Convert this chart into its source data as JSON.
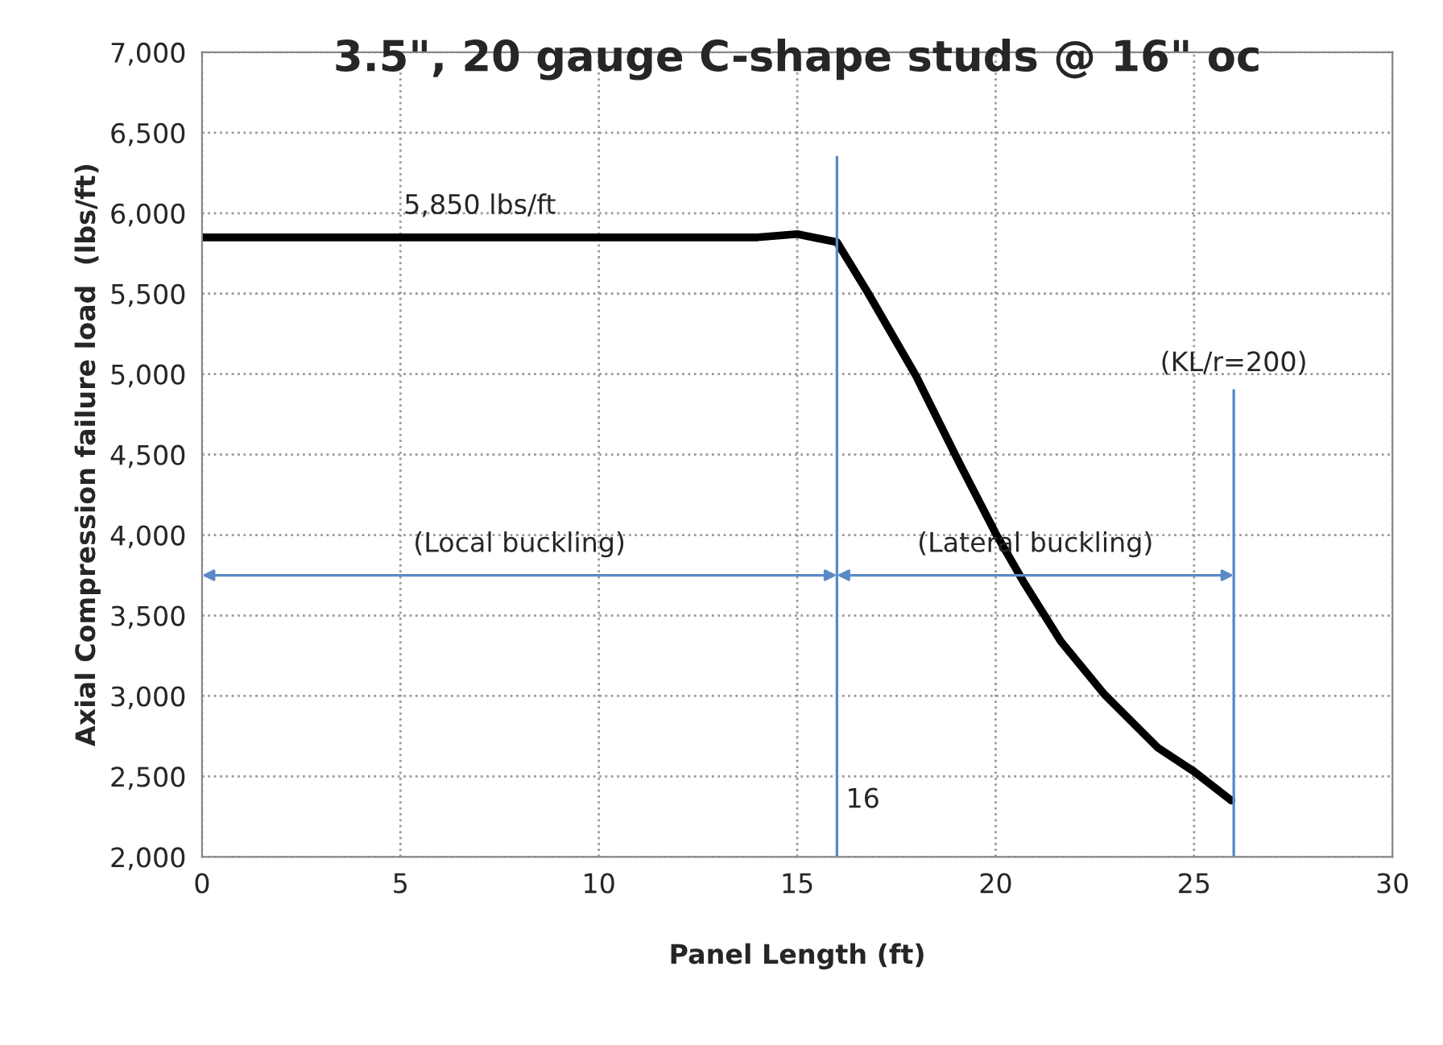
{
  "chart_data": {
    "type": "line",
    "title": "3.5\", 20 gauge C-shape studs @ 16\" oc",
    "xlabel": "Panel Length (ft)",
    "ylabel": "Axial Compression failure load  (lbs/ft)",
    "series": [
      {
        "color": "#000000",
        "x": [
          0,
          5,
          10,
          14,
          15,
          16,
          16.77,
          17.99,
          19.08,
          20,
          20.7,
          21.64,
          22.74,
          24.08,
          25,
          25.94
        ],
        "values": [
          5850,
          5850,
          5850,
          5850,
          5870,
          5820,
          5510,
          4990,
          4450,
          4010,
          3710,
          3340,
          3010,
          2680,
          2530,
          2350
        ]
      }
    ],
    "xlim": [
      0,
      30
    ],
    "xticks": [
      0,
      5,
      10,
      15,
      20,
      25,
      30
    ],
    "ylim": [
      2000,
      7000
    ],
    "yticks": [
      {
        "value": 2000,
        "label": "2,000"
      },
      {
        "value": 2500,
        "label": "2,500"
      },
      {
        "value": 3000,
        "label": "3,000"
      },
      {
        "value": 3500,
        "label": "3,500"
      },
      {
        "value": 4000,
        "label": "4,000"
      },
      {
        "value": 4500,
        "label": "4,500"
      },
      {
        "value": 5000,
        "label": "5,000"
      },
      {
        "value": 5500,
        "label": "5,500"
      },
      {
        "value": 6000,
        "label": "6,000"
      },
      {
        "value": 6500,
        "label": "6,500"
      },
      {
        "value": 7000,
        "label": "7,000"
      }
    ],
    "ref_lines": [
      {
        "axis": "x",
        "value": 16,
        "label": "16",
        "color": "#5b8ac6"
      },
      {
        "axis": "x",
        "value": 26,
        "color": "#5b8ac6"
      }
    ],
    "annotations": [
      {
        "text": "5,850 lbs/ft",
        "x": 7,
        "y": 5850
      },
      "(Local buckling)",
      "(Lateral buckling)",
      "(KL/r=200)"
    ],
    "grid": true,
    "legend": false,
    "marker": "none",
    "line_style": "solid"
  }
}
